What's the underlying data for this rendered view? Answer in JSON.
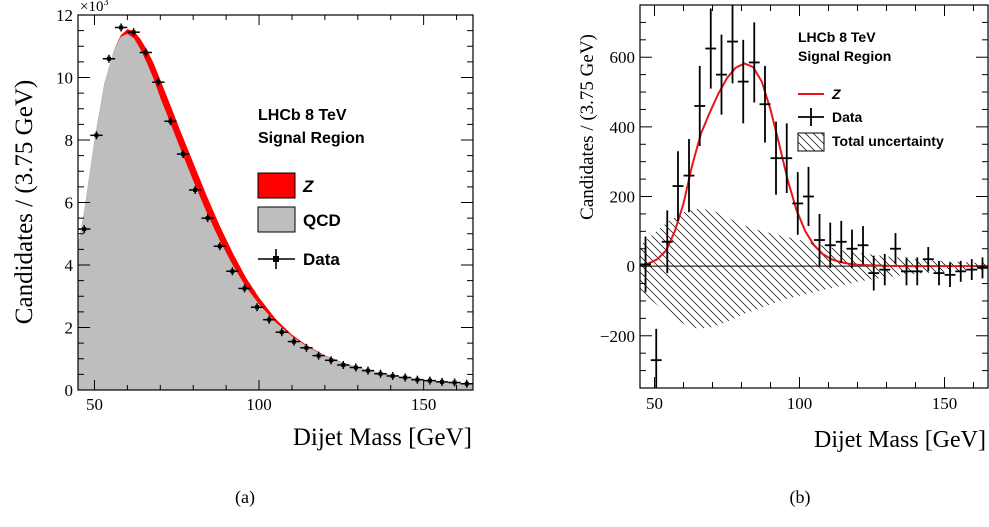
{
  "chart_data": [
    {
      "type": "area",
      "panel_label": "(a)",
      "exponent_label": "×10",
      "exponent_power": "3",
      "xlabel": "Dijet Mass [GeV]",
      "ylabel": "Candidates / (3.75 GeV)",
      "xlim": [
        45,
        165
      ],
      "ylim": [
        0,
        12000
      ],
      "x_ticks": [
        50,
        100,
        150
      ],
      "x_tick_labels": [
        "50",
        "100",
        "150"
      ],
      "y_ticks": [
        0,
        2000,
        4000,
        6000,
        8000,
        10000,
        12000
      ],
      "y_tick_labels": [
        "0",
        "2",
        "4",
        "6",
        "8",
        "10",
        "12"
      ],
      "annotation": [
        "LHCb 8 TeV",
        "Signal Region"
      ],
      "legend": {
        "placement": "right",
        "entries": [
          "Z",
          "QCD",
          "Data"
        ]
      },
      "colors": {
        "z": "#ff0000",
        "qcd": "#bebebe",
        "data": "#000000"
      },
      "series": [
        {
          "name": "QCD",
          "x": [
            45,
            47,
            50,
            53,
            56,
            58,
            60,
            62,
            64,
            66,
            68,
            70,
            73,
            76,
            80,
            84,
            88,
            92,
            96,
            100,
            105,
            110,
            115,
            120,
            125,
            130,
            135,
            140,
            145,
            150,
            155,
            160,
            165
          ],
          "values": [
            4600,
            5800,
            8000,
            9800,
            10900,
            11300,
            11400,
            11250,
            10900,
            10450,
            9950,
            9350,
            8550,
            7750,
            6700,
            5700,
            4800,
            4000,
            3300,
            2750,
            2170,
            1720,
            1370,
            1100,
            890,
            720,
            590,
            480,
            400,
            330,
            275,
            230,
            195
          ]
        },
        {
          "name": "Z",
          "x": [
            45,
            47,
            50,
            53,
            56,
            58,
            60,
            62,
            64,
            66,
            68,
            70,
            73,
            76,
            80,
            84,
            88,
            92,
            96,
            100,
            105,
            110,
            115,
            120,
            125,
            130,
            135,
            140,
            145,
            150,
            155,
            160,
            165
          ],
          "values": [
            4600,
            5800,
            8000,
            9800,
            10900,
            11350,
            11550,
            11480,
            11230,
            10880,
            10450,
            9930,
            9130,
            8320,
            7280,
            6240,
            5270,
            4390,
            3600,
            2960,
            2280,
            1770,
            1395,
            1115,
            895,
            722,
            591,
            481,
            400,
            330,
            275,
            230,
            195
          ]
        },
        {
          "name": "Data",
          "x": [
            46.9,
            50.6,
            54.4,
            58.1,
            61.9,
            65.6,
            69.4,
            73.1,
            76.9,
            80.6,
            84.4,
            88.1,
            91.9,
            95.6,
            99.4,
            103.1,
            106.9,
            110.6,
            114.4,
            118.1,
            121.9,
            125.6,
            129.4,
            133.1,
            136.9,
            140.6,
            144.4,
            148.1,
            151.9,
            155.6,
            159.4,
            163.1
          ],
          "values": [
            5150,
            8150,
            10600,
            11600,
            11450,
            10800,
            9850,
            8600,
            7550,
            6400,
            5500,
            4600,
            3800,
            3250,
            2650,
            2250,
            1850,
            1550,
            1350,
            1100,
            950,
            800,
            720,
            620,
            520,
            450,
            400,
            330,
            300,
            260,
            240,
            200
          ]
        }
      ]
    },
    {
      "type": "line",
      "panel_label": "(b)",
      "xlabel": "Dijet Mass [GeV]",
      "ylabel": "Candidates / (3.75 GeV)",
      "xlim": [
        45,
        165
      ],
      "ylim": [
        -350,
        750
      ],
      "x_ticks": [
        50,
        100,
        150
      ],
      "x_tick_labels": [
        "50",
        "100",
        "150"
      ],
      "y_ticks": [
        -200,
        0,
        200,
        400,
        600
      ],
      "y_tick_labels": [
        "−200",
        "0",
        "200",
        "400",
        "600"
      ],
      "annotation": [
        "LHCb 8 TeV",
        "Signal Region"
      ],
      "legend": {
        "placement": "top-right",
        "entries": [
          "Z",
          "Data",
          "Total uncertainty"
        ]
      },
      "colors": {
        "z": "#e8141c",
        "data": "#000000",
        "uncertainty": "#000000"
      },
      "series": [
        {
          "name": "Z",
          "x": [
            45,
            48,
            51,
            54,
            57,
            60,
            63,
            66,
            69,
            72,
            75,
            78,
            81,
            84,
            87,
            90,
            93,
            96,
            99,
            102,
            105,
            108,
            111,
            114,
            117,
            120,
            125,
            130,
            135,
            140,
            145,
            150,
            155,
            160,
            165
          ],
          "values": [
            2,
            8,
            20,
            45,
            100,
            180,
            290,
            380,
            440,
            495,
            540,
            570,
            582,
            572,
            530,
            450,
            350,
            245,
            160,
            100,
            60,
            35,
            20,
            12,
            7,
            4,
            2,
            1,
            0,
            0,
            0,
            0,
            0,
            0,
            0
          ]
        },
        {
          "name": "Data",
          "x": [
            46.9,
            50.6,
            54.4,
            58.1,
            61.9,
            65.6,
            69.4,
            73.1,
            76.9,
            80.6,
            84.4,
            88.1,
            91.9,
            95.6,
            99.4,
            103.1,
            106.9,
            110.6,
            114.4,
            118.1,
            121.9,
            125.6,
            129.4,
            133.1,
            136.9,
            140.6,
            144.4,
            148.1,
            151.9,
            155.6,
            159.4,
            163.1
          ],
          "values": [
            5,
            -270,
            70,
            230,
            260,
            460,
            625,
            550,
            645,
            530,
            585,
            465,
            310,
            310,
            180,
            200,
            75,
            60,
            70,
            50,
            60,
            -20,
            -10,
            50,
            -15,
            -15,
            20,
            -20,
            -25,
            -15,
            -10,
            -5
          ],
          "errors": [
            80,
            90,
            90,
            100,
            105,
            115,
            115,
            115,
            120,
            120,
            115,
            110,
            105,
            100,
            90,
            85,
            75,
            65,
            60,
            55,
            55,
            50,
            45,
            45,
            40,
            40,
            35,
            35,
            35,
            30,
            30,
            30
          ]
        },
        {
          "name": "Total uncertainty",
          "x": [
            45,
            50,
            55,
            60,
            65,
            70,
            75,
            80,
            85,
            90,
            95,
            100,
            105,
            110,
            115,
            120,
            125,
            130,
            135,
            140,
            145,
            150,
            155,
            160,
            165
          ],
          "upper": [
            60,
            95,
            130,
            155,
            165,
            160,
            140,
            120,
            105,
            95,
            85,
            75,
            65,
            55,
            45,
            38,
            33,
            28,
            24,
            20,
            17,
            14,
            12,
            10,
            8
          ],
          "lower": [
            -70,
            -105,
            -140,
            -165,
            -180,
            -175,
            -160,
            -140,
            -125,
            -110,
            -95,
            -85,
            -75,
            -65,
            -55,
            -45,
            -38,
            -32,
            -27,
            -22,
            -19,
            -16,
            -13,
            -11,
            -9
          ]
        }
      ]
    }
  ]
}
